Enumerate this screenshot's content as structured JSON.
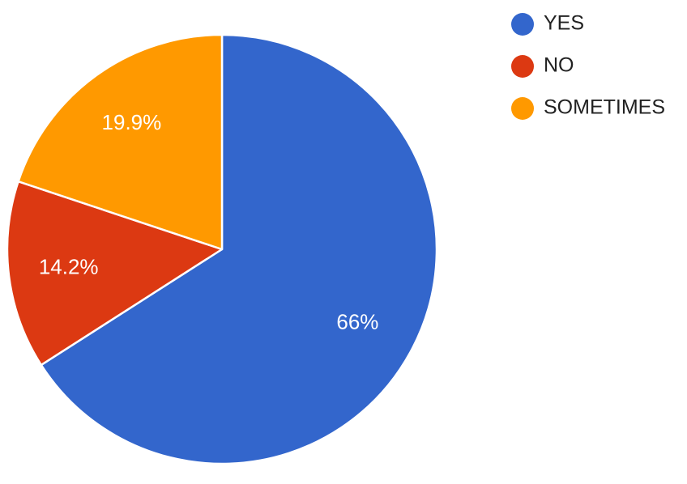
{
  "chart_data": {
    "type": "pie",
    "title": "",
    "start_angle_deg": 90,
    "direction": "counterclockwise",
    "legend_position": "top-right",
    "slices": [
      {
        "label": "YES",
        "value": 66,
        "display": "66%",
        "color": "#3366cc"
      },
      {
        "label": "NO",
        "value": 14.2,
        "display": "14.2%",
        "color": "#dc3912"
      },
      {
        "label": "SOMETIMES",
        "value": 19.9,
        "display": "19.9%",
        "color": "#ff9900"
      }
    ]
  }
}
